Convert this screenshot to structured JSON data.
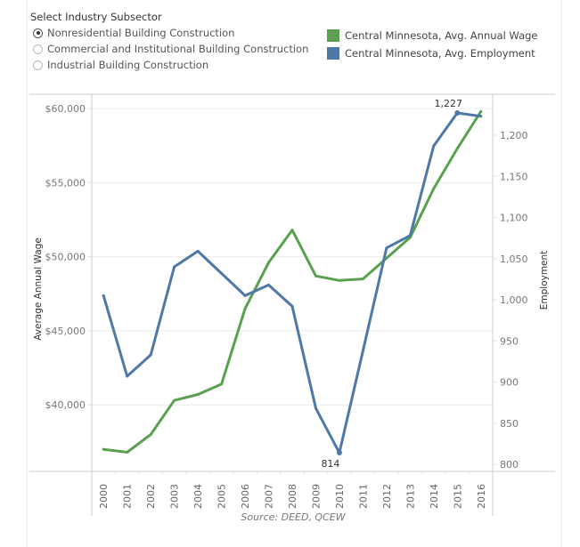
{
  "filter": {
    "title": "Select Industry Subsector",
    "options": [
      {
        "label": "Nonresidential Building Construction",
        "selected": true
      },
      {
        "label": "Commercial and Institutional Building Construction",
        "selected": false
      },
      {
        "label": "Industrial Building Construction",
        "selected": false
      }
    ]
  },
  "legend": [
    {
      "label": "Central Minnesota, Avg. Annual Wage",
      "color": "#59a14f"
    },
    {
      "label": "Central Minnesota, Avg. Employment",
      "color": "#4e79a7"
    }
  ],
  "chart_data": {
    "type": "line",
    "title": "",
    "xlabel": "",
    "ylabel": "Average Annual Wage",
    "y2label": "Employment",
    "source": "Source: DEED, QCEW",
    "x": [
      "2000",
      "2001",
      "2002",
      "2003",
      "2004",
      "2005",
      "2006",
      "2007",
      "2008",
      "2009",
      "2010",
      "2011",
      "2012",
      "2013",
      "2014",
      "2015",
      "2016"
    ],
    "ylim": [
      35400,
      61000
    ],
    "y2lim": [
      800,
      1240
    ],
    "y_ticks": [
      {
        "value": 40000,
        "label": "$40,000"
      },
      {
        "value": 45000,
        "label": "$45,000"
      },
      {
        "value": 50000,
        "label": "$50,000"
      },
      {
        "value": 55000,
        "label": "$55,000"
      },
      {
        "value": 60000,
        "label": "$60,000"
      }
    ],
    "y2_ticks": [
      {
        "value": 800,
        "label": "800"
      },
      {
        "value": 850,
        "label": "850"
      },
      {
        "value": 900,
        "label": "900"
      },
      {
        "value": 950,
        "label": "950"
      },
      {
        "value": 1000,
        "label": "1,000"
      },
      {
        "value": 1050,
        "label": "1,050"
      },
      {
        "value": 1100,
        "label": "1,100"
      },
      {
        "value": 1150,
        "label": "1,150"
      },
      {
        "value": 1200,
        "label": "1,200"
      }
    ],
    "grid": true,
    "legend_position": "top-right",
    "series": [
      {
        "name": "Central Minnesota, Avg. Annual Wage",
        "axis": "left",
        "color": "#59a14f",
        "values": [
          37000,
          36800,
          38000,
          40300,
          40700,
          41400,
          46500,
          49600,
          51800,
          48700,
          48400,
          48500,
          49900,
          51300,
          54600,
          57300,
          59800
        ]
      },
      {
        "name": "Central Minnesota, Avg. Employment",
        "axis": "right",
        "color": "#4e79a7",
        "values": [
          1005,
          907,
          933,
          1040,
          1059,
          1032,
          1005,
          1018,
          992,
          868,
          814,
          938,
          1063,
          1078,
          1187,
          1227,
          1223
        ]
      }
    ],
    "annotations": [
      {
        "series": 1,
        "index": 10,
        "label": "814",
        "position": "below"
      },
      {
        "series": 1,
        "index": 15,
        "label": "1,227",
        "position": "above"
      }
    ]
  }
}
